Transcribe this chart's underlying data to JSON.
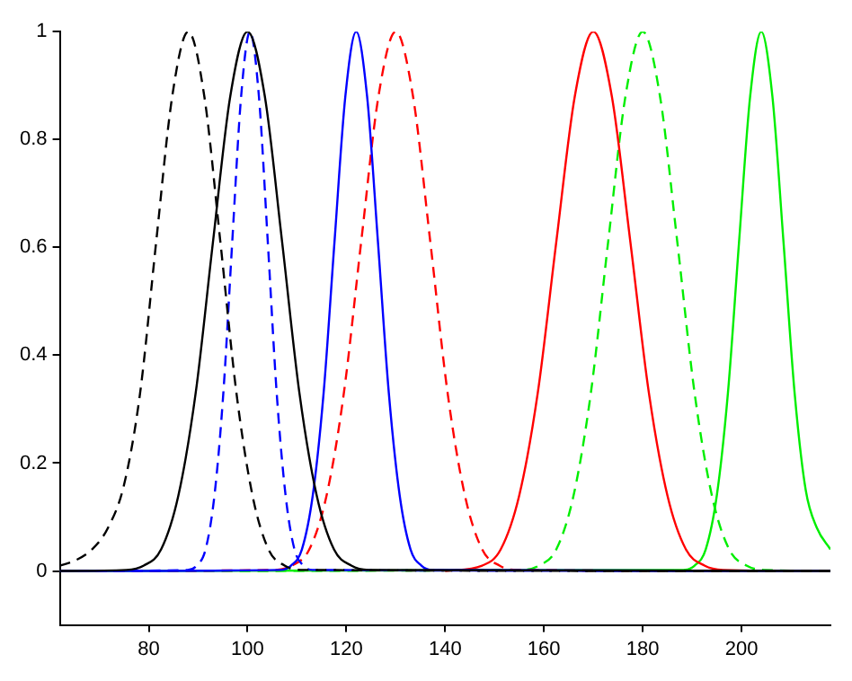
{
  "chart_data": {
    "type": "line",
    "xlim": [
      62,
      218
    ],
    "ylim": [
      -0.1,
      1
    ],
    "xticks": [
      80,
      100,
      120,
      140,
      160,
      180,
      200
    ],
    "yticks": [
      0,
      0.2,
      0.4,
      0.6,
      0.8,
      1
    ],
    "grid": false,
    "legend": false,
    "marker": "none",
    "series": [
      {
        "color": "#000000",
        "line_style": "dashed",
        "x": [
          62,
          65.25,
          68.5,
          71.75,
          75,
          78.25,
          81.5,
          84.75,
          88,
          91.25,
          94.5,
          97.75,
          101,
          104.25,
          107.5,
          110.75,
          218
        ],
        "values": [
          0.01,
          0.02,
          0.04,
          0.08,
          0.16,
          0.33,
          0.61,
          0.88,
          1,
          0.88,
          0.61,
          0.33,
          0.14,
          0.04,
          0.01,
          0.002,
          0
        ]
      },
      {
        "color": "#000000",
        "line_style": "solid",
        "x": [
          62,
          75.5,
          79,
          82.5,
          86,
          89.5,
          93,
          96.5,
          100,
          103.5,
          107,
          110.5,
          114,
          117.5,
          121,
          124.5,
          218
        ],
        "values": [
          0,
          0.002,
          0.01,
          0.04,
          0.14,
          0.33,
          0.61,
          0.88,
          1,
          0.88,
          0.61,
          0.33,
          0.14,
          0.04,
          0.01,
          0.002,
          0
        ]
      },
      {
        "color": "#0000ff",
        "line_style": "dashed",
        "x": [
          62,
          87.9,
          89.7,
          91.5,
          93.3,
          95.1,
          96.9,
          98.7,
          100.5,
          102.3,
          104.1,
          105.9,
          107.7,
          109.5,
          111.3,
          113.1,
          218
        ],
        "values": [
          0,
          0.002,
          0.01,
          0.04,
          0.14,
          0.33,
          0.61,
          0.88,
          1,
          0.88,
          0.61,
          0.33,
          0.14,
          0.04,
          0.01,
          0.002,
          0
        ]
      },
      {
        "color": "#0000ff",
        "line_style": "solid",
        "x": [
          62,
          106.6,
          108.8,
          111,
          113.2,
          115.4,
          117.6,
          119.8,
          122,
          124.2,
          126.4,
          128.6,
          130.8,
          133,
          135.2,
          137.4,
          218
        ],
        "values": [
          0,
          0.002,
          0.01,
          0.04,
          0.14,
          0.33,
          0.61,
          0.88,
          1,
          0.88,
          0.61,
          0.33,
          0.14,
          0.04,
          0.01,
          0.002,
          0
        ]
      },
      {
        "color": "#ff0000",
        "line_style": "dashed",
        "x": [
          62,
          105.5,
          109,
          112.5,
          116,
          119.5,
          123,
          126.5,
          130,
          133.5,
          137,
          140.5,
          144,
          147.5,
          151,
          154.5,
          218
        ],
        "values": [
          0,
          0.002,
          0.01,
          0.04,
          0.14,
          0.33,
          0.61,
          0.88,
          1,
          0.88,
          0.61,
          0.33,
          0.14,
          0.04,
          0.01,
          0.002,
          0
        ]
      },
      {
        "color": "#ff0000",
        "line_style": "solid",
        "x": [
          140,
          147.5,
          151.25,
          155,
          158.75,
          162.5,
          166.25,
          170,
          173.75,
          177.5,
          181.25,
          185,
          188.75,
          192.5,
          196.25,
          218
        ],
        "values": [
          0,
          0.01,
          0.04,
          0.14,
          0.33,
          0.61,
          0.88,
          1,
          0.88,
          0.61,
          0.33,
          0.14,
          0.04,
          0.01,
          0.002,
          0
        ]
      },
      {
        "color": "#00ee00",
        "line_style": "dashed",
        "x": [
          62,
          155.5,
          159,
          162.5,
          166,
          169.5,
          173,
          176.5,
          180,
          183.5,
          187,
          190.5,
          194,
          197.5,
          201,
          204.5,
          218
        ],
        "values": [
          0,
          0.002,
          0.01,
          0.04,
          0.14,
          0.33,
          0.61,
          0.88,
          1,
          0.88,
          0.61,
          0.33,
          0.14,
          0.04,
          0.01,
          0.002,
          0
        ]
      },
      {
        "color": "#00ee00",
        "line_style": "solid",
        "x": [
          62,
          188.25,
          190.5,
          192.75,
          195,
          197.25,
          199.5,
          201.75,
          204,
          206.25,
          208.5,
          210.75,
          213,
          215.25,
          218
        ],
        "values": [
          0,
          0.002,
          0.01,
          0.04,
          0.14,
          0.33,
          0.61,
          0.88,
          1,
          0.88,
          0.61,
          0.33,
          0.15,
          0.08,
          0.04
        ]
      }
    ]
  }
}
